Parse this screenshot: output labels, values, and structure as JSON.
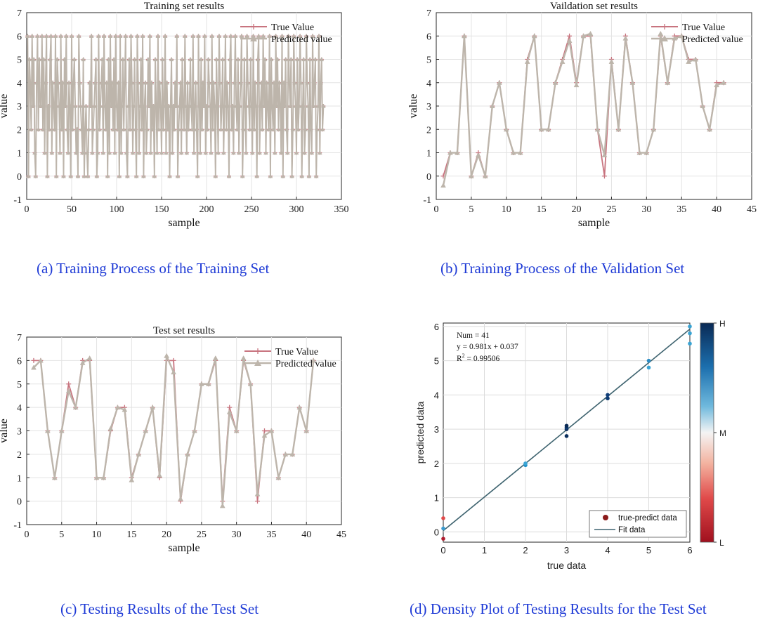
{
  "colors": {
    "true_line": "#c8747f",
    "pred_line": "#bdb5ab",
    "caption": "#1f3bd6",
    "fit_line": "#3f6470",
    "legend_dot": "#8b1a1a"
  },
  "captions": {
    "a": "(a) Training Process of the Training Set",
    "b": "(b) Training Process of the Validation Set",
    "c": "(c) Testing Results of the Test Set",
    "d": "(d) Density Plot of Testing Results for the Test Set"
  },
  "chart_data": [
    {
      "id": "a",
      "type": "line",
      "title": "Training set results",
      "xlabel": "sample",
      "ylabel": "value",
      "xlim": [
        0,
        350
      ],
      "ylim": [
        -1,
        7
      ],
      "xticks": [
        "0",
        "50",
        "100",
        "150",
        "200",
        "250",
        "300",
        "350"
      ],
      "yticks": [
        "-1",
        "0",
        "1",
        "2",
        "3",
        "4",
        "5",
        "6",
        "7"
      ],
      "grid": true,
      "legend_position": "top-right",
      "n_samples": 329,
      "series": [
        {
          "name": "True Value",
          "values": [
            6,
            0,
            5,
            4,
            2,
            6,
            3,
            5,
            1,
            0,
            4,
            6,
            2,
            5,
            3,
            3,
            6,
            2,
            5,
            1,
            4,
            6,
            0,
            3,
            2,
            5,
            6,
            1,
            4,
            3,
            2,
            6,
            0,
            5,
            4,
            3,
            1,
            6,
            2,
            4,
            0,
            5,
            3,
            6,
            2,
            1,
            4,
            3,
            0,
            6,
            2,
            4,
            5,
            3,
            1,
            2,
            0,
            6,
            4,
            3,
            2,
            1,
            5,
            0,
            2,
            3,
            1,
            0,
            2,
            4,
            3,
            6,
            1,
            2,
            3,
            4,
            5,
            0,
            1,
            6,
            2,
            3,
            4,
            5,
            1,
            6,
            3,
            2,
            4,
            0,
            5,
            1,
            6,
            3,
            4,
            2,
            5,
            1,
            6,
            3,
            2,
            4,
            0,
            6,
            1,
            3,
            5,
            2,
            4,
            6,
            1,
            0,
            3,
            5,
            2,
            6,
            4,
            1,
            3,
            5,
            2,
            0,
            6,
            4,
            1,
            3,
            5,
            2,
            6,
            0,
            3,
            4,
            1,
            2,
            5,
            3,
            6,
            1,
            4,
            2,
            3,
            0,
            5,
            3,
            1,
            6,
            2,
            4,
            3,
            1,
            5,
            2,
            3,
            6,
            1,
            4,
            2,
            3,
            0,
            3,
            5,
            1,
            3,
            2,
            4,
            3,
            6,
            0,
            2,
            3,
            4,
            1,
            5,
            3,
            2,
            6,
            3,
            1,
            4,
            2,
            3,
            5,
            3,
            2,
            6,
            1,
            3,
            4,
            2,
            0,
            6,
            3,
            1,
            5,
            2,
            4,
            3,
            6,
            1,
            3,
            2,
            5,
            4,
            3,
            1,
            6,
            2,
            4,
            3,
            0,
            5,
            3,
            1,
            6,
            4,
            2,
            3,
            5,
            1,
            3,
            6,
            2,
            4,
            3,
            0,
            5,
            6,
            2,
            3,
            1,
            4,
            6,
            3,
            2,
            5,
            1,
            3,
            4,
            6,
            0,
            2,
            5,
            3,
            1,
            6,
            4,
            3,
            2,
            5,
            3,
            1,
            6,
            2,
            4,
            3,
            0,
            5,
            6,
            1,
            3,
            4,
            2,
            6,
            3,
            5,
            1,
            4,
            3,
            2,
            6,
            0,
            5,
            3,
            2,
            4,
            1,
            6,
            3,
            5,
            2,
            4,
            3,
            1,
            6,
            0,
            4,
            3,
            5,
            2,
            1,
            6,
            4,
            3,
            5,
            0,
            2,
            6,
            4,
            3,
            1,
            5,
            2,
            3,
            6,
            4,
            0,
            3,
            5,
            1,
            2,
            6,
            4,
            3,
            0,
            5,
            2,
            1,
            6,
            3,
            4,
            5,
            0,
            2,
            3,
            6,
            1,
            4,
            5,
            2,
            3
          ]
        },
        {
          "name": "Predicted value",
          "values": [
            6,
            0,
            5,
            4,
            2,
            6,
            3,
            5,
            1,
            0,
            4,
            6,
            2,
            5,
            3,
            3,
            6,
            2,
            5,
            1,
            4,
            6,
            0,
            3,
            2,
            5,
            6,
            1,
            4,
            3,
            2,
            6,
            0,
            5,
            4,
            3,
            1,
            6,
            2,
            4,
            0,
            5,
            3,
            6,
            2,
            1,
            4,
            3,
            0,
            6,
            2,
            4,
            5,
            3,
            1,
            2,
            0,
            6,
            4,
            3,
            2,
            1,
            5,
            0,
            2,
            3,
            1,
            0,
            2,
            4,
            3,
            6,
            1,
            2,
            3,
            4,
            5,
            0,
            1,
            6,
            2,
            3,
            4,
            5,
            1,
            6,
            3,
            2,
            4,
            0,
            5,
            1,
            6,
            3,
            4,
            2,
            5,
            1,
            6,
            3,
            2,
            4,
            0,
            6,
            1,
            3,
            5,
            2,
            4,
            6,
            1,
            0,
            3,
            5,
            2,
            6,
            4,
            1,
            3,
            5,
            2,
            0,
            6,
            4,
            1,
            3,
            5,
            2,
            6,
            0,
            3,
            4,
            1,
            2,
            5,
            3,
            6,
            1,
            4,
            2,
            3,
            0,
            5,
            3,
            1,
            6,
            2,
            4,
            3,
            1,
            5,
            2,
            3,
            6,
            1,
            4,
            2,
            3,
            0,
            3,
            5,
            1,
            3,
            2,
            4,
            3,
            6,
            0,
            2,
            3,
            4,
            1,
            5,
            3,
            2,
            6,
            3,
            1,
            4,
            2,
            3,
            5,
            3,
            2,
            6,
            1,
            3,
            4,
            2,
            0,
            6,
            3,
            1,
            5,
            2,
            4,
            3,
            6,
            1,
            3,
            2,
            5,
            4,
            3,
            1,
            6,
            2,
            4,
            3,
            0,
            5,
            3,
            1,
            6,
            4,
            2,
            3,
            5,
            1,
            3,
            6,
            2,
            4,
            3,
            0,
            5,
            6,
            2,
            3,
            1,
            4,
            6,
            3,
            2,
            5,
            1,
            3,
            4,
            6,
            0,
            2,
            5,
            3,
            1,
            6,
            4,
            3,
            2,
            5,
            3,
            1,
            6,
            2,
            4,
            3,
            0,
            5,
            6,
            1,
            3,
            4,
            2,
            6,
            3,
            5,
            1,
            4,
            3,
            2,
            6,
            0,
            5,
            3,
            2,
            4,
            1,
            6,
            3,
            5,
            2,
            4,
            3,
            1,
            6,
            0,
            4,
            3,
            5,
            2,
            1,
            6,
            4,
            3,
            5,
            0,
            2,
            6,
            4,
            3,
            1,
            5,
            2,
            3,
            6,
            4,
            0,
            3,
            5,
            1,
            2,
            6,
            4,
            3,
            0,
            5,
            2,
            1,
            6,
            3,
            4,
            5,
            0,
            2,
            3,
            6,
            1,
            4,
            5,
            2,
            3
          ]
        }
      ]
    },
    {
      "id": "b",
      "type": "line",
      "title": "Vaildation set results",
      "xlabel": "sample",
      "ylabel": "value",
      "xlim": [
        0,
        45
      ],
      "ylim": [
        -1,
        7
      ],
      "xticks": [
        "0",
        "5",
        "10",
        "15",
        "20",
        "25",
        "30",
        "35",
        "40",
        "45"
      ],
      "yticks": [
        "-1",
        "0",
        "1",
        "2",
        "3",
        "4",
        "5",
        "6",
        "7"
      ],
      "grid": true,
      "legend_position": "top-right",
      "x": [
        1,
        2,
        3,
        4,
        5,
        6,
        7,
        8,
        9,
        10,
        11,
        12,
        13,
        14,
        15,
        16,
        17,
        18,
        19,
        20,
        21,
        22,
        23,
        24,
        25,
        26,
        27,
        28,
        29,
        30,
        31,
        32,
        33,
        34,
        35,
        36,
        37,
        38,
        39,
        40,
        41
      ],
      "series": [
        {
          "name": "True Value",
          "values": [
            0,
            1,
            1,
            6,
            0,
            1,
            0,
            3,
            4,
            2,
            1,
            1,
            5,
            6,
            2,
            2,
            4,
            5,
            6,
            4,
            6,
            6,
            2,
            0,
            5,
            2,
            6,
            4,
            1,
            1,
            2,
            6,
            4,
            6,
            6,
            5,
            5,
            3,
            2,
            4,
            4
          ]
        },
        {
          "name": "Predicted value",
          "values": [
            -0.4,
            1,
            1,
            6,
            0,
            0.9,
            0,
            3,
            4,
            2,
            1,
            1,
            4.9,
            6,
            2,
            2,
            4,
            4.9,
            5.8,
            3.9,
            6,
            6.1,
            2,
            0.9,
            4.9,
            2,
            5.9,
            4,
            1,
            1,
            2,
            6.1,
            4,
            5.9,
            6,
            4.9,
            5,
            3,
            2,
            3.9,
            4
          ]
        }
      ]
    },
    {
      "id": "c",
      "type": "line",
      "title": "Test set results",
      "xlabel": "sample",
      "ylabel": "value",
      "xlim": [
        0,
        45
      ],
      "ylim": [
        -1,
        7
      ],
      "xticks": [
        "0",
        "5",
        "10",
        "15",
        "20",
        "25",
        "30",
        "35",
        "40",
        "45"
      ],
      "yticks": [
        "-1",
        "0",
        "1",
        "2",
        "3",
        "4",
        "5",
        "6",
        "7"
      ],
      "grid": true,
      "legend_position": "top-right",
      "x": [
        1,
        2,
        3,
        4,
        5,
        6,
        7,
        8,
        9,
        10,
        11,
        12,
        13,
        14,
        15,
        16,
        17,
        18,
        19,
        20,
        21,
        22,
        23,
        24,
        25,
        26,
        27,
        28,
        29,
        30,
        31,
        32,
        33,
        34,
        35,
        36,
        37,
        38,
        39,
        40,
        41
      ],
      "series": [
        {
          "name": "True Value",
          "values": [
            6,
            6,
            3,
            1,
            3,
            5,
            4,
            6,
            6,
            1,
            1,
            3,
            4,
            4,
            1,
            2,
            3,
            4,
            1,
            6,
            6,
            0,
            2,
            3,
            5,
            5,
            6,
            0,
            4,
            3,
            6,
            5,
            0,
            3,
            3,
            1,
            2,
            2,
            4,
            3,
            6
          ]
        },
        {
          "name": "Predicted value",
          "values": [
            5.7,
            6,
            3,
            1,
            3,
            4.7,
            4,
            5.9,
            6.1,
            1,
            1,
            3.1,
            4,
            3.9,
            0.9,
            2,
            3,
            4,
            1.1,
            6.2,
            5.5,
            0.1,
            2,
            3,
            5,
            5,
            6.1,
            -0.2,
            3.8,
            3,
            6.1,
            5,
            0.3,
            2.8,
            3,
            1,
            2,
            2,
            4,
            3,
            6
          ]
        }
      ]
    },
    {
      "id": "d",
      "type": "scatter",
      "xlabel": "true data",
      "ylabel": "predicted data",
      "xlim": [
        0,
        6
      ],
      "ylim": [
        -0.3,
        6.1
      ],
      "xticks": [
        "0",
        "1",
        "2",
        "3",
        "4",
        "5",
        "6"
      ],
      "yticks": [
        "0",
        "1",
        "2",
        "3",
        "4",
        "5",
        "6"
      ],
      "grid": true,
      "legend_position": "bottom-right",
      "annotations": [
        "Num = 41",
        "y = 0.981x + 0.037",
        "= 0.99506"
      ],
      "r2_label": "R",
      "r2_sup": "2",
      "colorbar_labels": [
        "H",
        "M",
        "L"
      ],
      "points": [
        {
          "x": 0,
          "y": 0.4,
          "c": "#e04a4a"
        },
        {
          "x": 0,
          "y": 0.1,
          "c": "#3a9bd0"
        },
        {
          "x": 0,
          "y": -0.2,
          "c": "#b01c2e"
        },
        {
          "x": 2,
          "y": 1.95,
          "c": "#1e8fc8"
        },
        {
          "x": 2,
          "y": 2.0,
          "c": "#3aa4d4"
        },
        {
          "x": 3,
          "y": 2.8,
          "c": "#0b2f5e"
        },
        {
          "x": 3,
          "y": 3.0,
          "c": "#0b2f5e"
        },
        {
          "x": 3,
          "y": 3.05,
          "c": "#0d3a73"
        },
        {
          "x": 3,
          "y": 3.1,
          "c": "#0a2a55"
        },
        {
          "x": 4,
          "y": 3.9,
          "c": "#0d3a73"
        },
        {
          "x": 4,
          "y": 4.0,
          "c": "#123f7a"
        },
        {
          "x": 5,
          "y": 4.8,
          "c": "#3aa4d4"
        },
        {
          "x": 5,
          "y": 5.0,
          "c": "#2b8cc4"
        },
        {
          "x": 6,
          "y": 6.0,
          "c": "#3aa4d4"
        },
        {
          "x": 6,
          "y": 5.8,
          "c": "#3aa4d4"
        },
        {
          "x": 6,
          "y": 5.5,
          "c": "#3aa4d4"
        }
      ],
      "fit": {
        "slope": 0.981,
        "intercept": 0.037
      },
      "series": [
        {
          "name": "true-predict data"
        },
        {
          "name": "Fit data"
        }
      ]
    }
  ]
}
